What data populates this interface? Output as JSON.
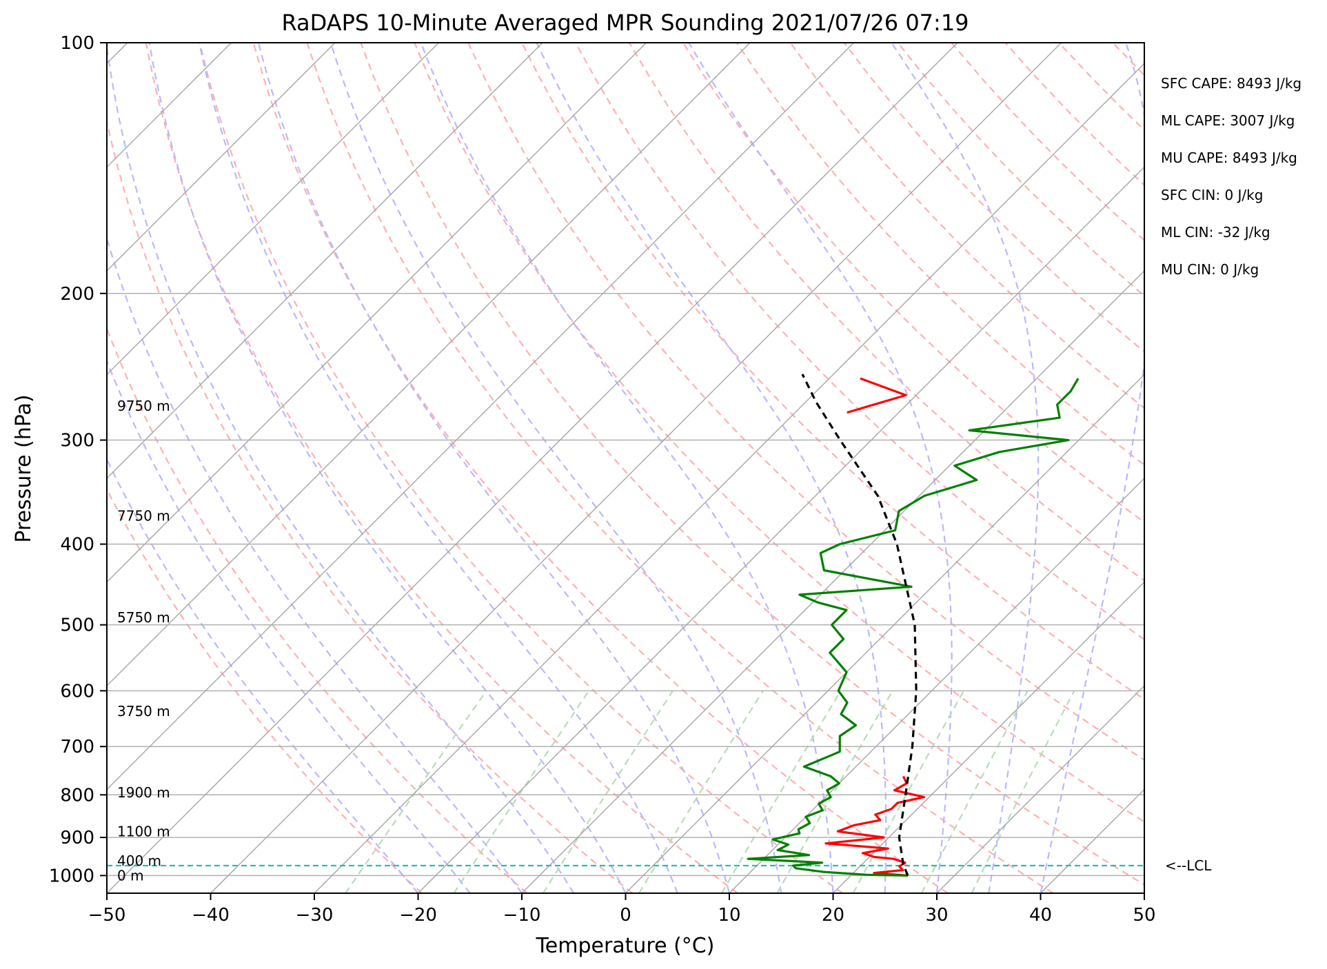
{
  "chart_data": {
    "type": "line",
    "title": "RaDAPS 10-Minute Averaged MPR Sounding 2021/07/26 07:19",
    "xlabel": "Temperature (°C)",
    "ylabel": "Pressure (hPa)",
    "xlim": [
      -50,
      50
    ],
    "ylim": [
      1050,
      100
    ],
    "y_scale": "log",
    "skew_t": true,
    "x_ticks": [
      -50,
      -40,
      -30,
      -20,
      -10,
      0,
      10,
      20,
      30,
      40,
      50
    ],
    "x_tick_labels": [
      "−50",
      "−40",
      "−30",
      "−20",
      "−10",
      "0",
      "10",
      "20",
      "30",
      "40",
      "50"
    ],
    "y_ticks": [
      100,
      200,
      300,
      400,
      500,
      600,
      700,
      800,
      900,
      1000
    ],
    "y_tick_labels": [
      "100",
      "200",
      "300",
      "400",
      "500",
      "600",
      "700",
      "800",
      "900",
      "1000"
    ],
    "grid": true,
    "series": [
      {
        "name": "",
        "color": "#ff0000",
        "p": [
          1000,
          993,
          985,
          975,
          965,
          955,
          950,
          940,
          928,
          915,
          900,
          885,
          870,
          858,
          845,
          832,
          818,
          805,
          790,
          775,
          760
        ],
        "t": [
          25.5,
          22.0,
          24.5,
          23.8,
          24.0,
          22.5,
          20.5,
          19.0,
          21.0,
          14.5,
          19.5,
          14.5,
          15.5,
          17.5,
          16.5,
          17.5,
          17.5,
          19.5,
          16.0,
          16.5,
          15.5
        ]
      },
      {
        "name": "",
        "color": "#ff0000",
        "p": [
          253,
          265,
          278
        ],
        "t": [
          -27,
          -21,
          -25
        ]
      },
      {
        "name": "",
        "color": "#008000",
        "p": [
          1000,
          998,
          990,
          980,
          973,
          965,
          955,
          945,
          932,
          918,
          905,
          890,
          880,
          865,
          850,
          835,
          820,
          805,
          790,
          775,
          760,
          740,
          710,
          680,
          660,
          640,
          620,
          600,
          570,
          540,
          520,
          500,
          480,
          470,
          460,
          450,
          430,
          410,
          400,
          385,
          365,
          350,
          335,
          322,
          310,
          300,
          292,
          282,
          272,
          262,
          253
        ],
        "t": [
          25.5,
          21.5,
          17.0,
          14.0,
          13.5,
          16.0,
          8.5,
          14.0,
          10.5,
          11.0,
          9.0,
          11.0,
          10.5,
          11.0,
          10.0,
          11.0,
          10.0,
          10.5,
          9.5,
          10.0,
          8.5,
          5.0,
          7.0,
          5.5,
          6.0,
          3.5,
          3.0,
          1.0,
          0.0,
          -3.5,
          -3.5,
          -6.0,
          -6.0,
          -9.5,
          -12.0,
          -2.0,
          -12.0,
          -14.0,
          -13.0,
          -9.0,
          -10.5,
          -9.5,
          -6.0,
          -9.5,
          -6.5,
          -1.0,
          -11.5,
          -4.0,
          -5.5,
          -5.5,
          -6.0
        ]
      },
      {
        "name": "",
        "color": "#000000",
        "dashed": true,
        "p": [
          1000,
          970,
          900,
          800,
          700,
          600,
          500,
          400,
          350,
          300,
          270,
          250
        ],
        "t": [
          25.5,
          24.0,
          21.0,
          17.5,
          13.5,
          8.5,
          2.0,
          -7.5,
          -14.0,
          -23.0,
          -29.0,
          -33.0
        ]
      }
    ],
    "lcl": {
      "p": 973,
      "label": "<--LCL"
    },
    "height_labels": [
      {
        "p": 273,
        "text": "9750 m"
      },
      {
        "p": 370,
        "text": "7750 m"
      },
      {
        "p": 490,
        "text": "5750 m"
      },
      {
        "p": 635,
        "text": "3750 m"
      },
      {
        "p": 795,
        "text": "1900 m"
      },
      {
        "p": 885,
        "text": "1100 m"
      },
      {
        "p": 960,
        "text": "400 m"
      },
      {
        "p": 1000,
        "text": "0 m"
      }
    ]
  },
  "stats": [
    "SFC CAPE: 8493 J/kg",
    "ML CAPE: 3007 J/kg",
    "MU CAPE: 8493 J/kg",
    "SFC CIN: 0 J/kg",
    "ML CIN: -32 J/kg",
    "MU CIN: 0 J/kg"
  ]
}
